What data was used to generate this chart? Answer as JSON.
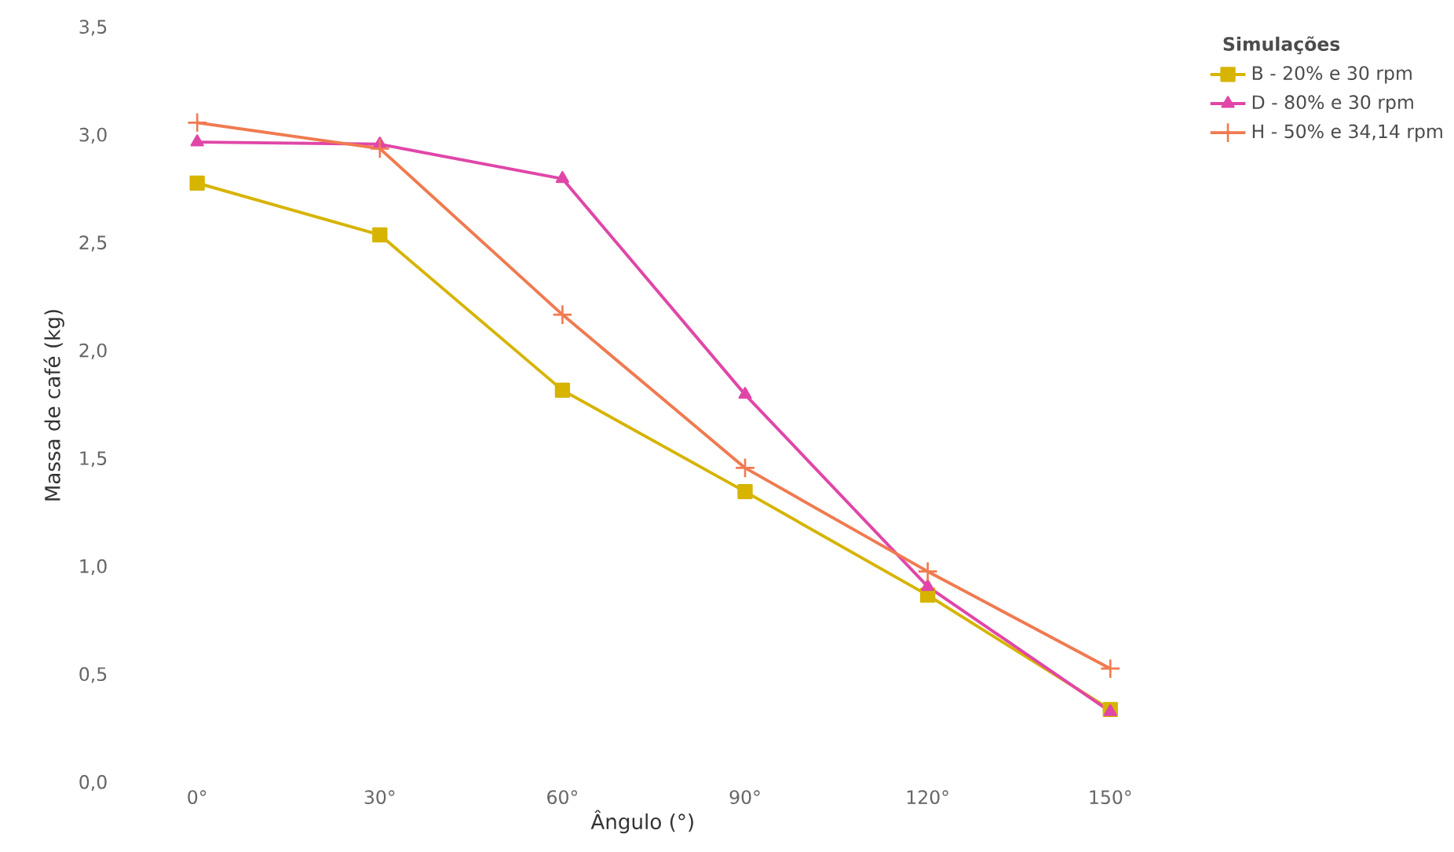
{
  "chart_data": {
    "type": "line",
    "xlabel": "Ângulo (°)",
    "ylabel": "Massa de café (kg)",
    "legend_title": "Simulações",
    "legend": "top right",
    "categories": [
      "0°",
      "30°",
      "60°",
      "90°",
      "120°",
      "150°"
    ],
    "ylim": [
      0,
      3.5
    ],
    "yticks": [
      {
        "value": 0,
        "label": "0,0"
      },
      {
        "value": 0.5,
        "label": "0,5"
      },
      {
        "value": 1,
        "label": "1,0"
      },
      {
        "value": 1.5,
        "label": "1,5"
      },
      {
        "value": 2,
        "label": "2,0"
      },
      {
        "value": 2.5,
        "label": "2,5"
      },
      {
        "value": 3,
        "label": "3,0"
      },
      {
        "value": 3.5,
        "label": "3,5"
      }
    ],
    "series": [
      {
        "name": "B - 20% e 30 rpm",
        "color": "#d6b400",
        "marker": "square",
        "values": [
          2.78,
          2.54,
          1.82,
          1.35,
          0.87,
          0.34
        ]
      },
      {
        "name": "D - 80% e 30 rpm",
        "color": "#e046a8",
        "marker": "triangle",
        "values": [
          2.97,
          2.96,
          2.8,
          1.8,
          0.91,
          0.33
        ]
      },
      {
        "name": "H - 50% e 34,14 rpm",
        "color": "#f07a50",
        "marker": "cross",
        "values": [
          3.06,
          2.94,
          2.17,
          1.46,
          0.98,
          0.53
        ]
      }
    ]
  }
}
